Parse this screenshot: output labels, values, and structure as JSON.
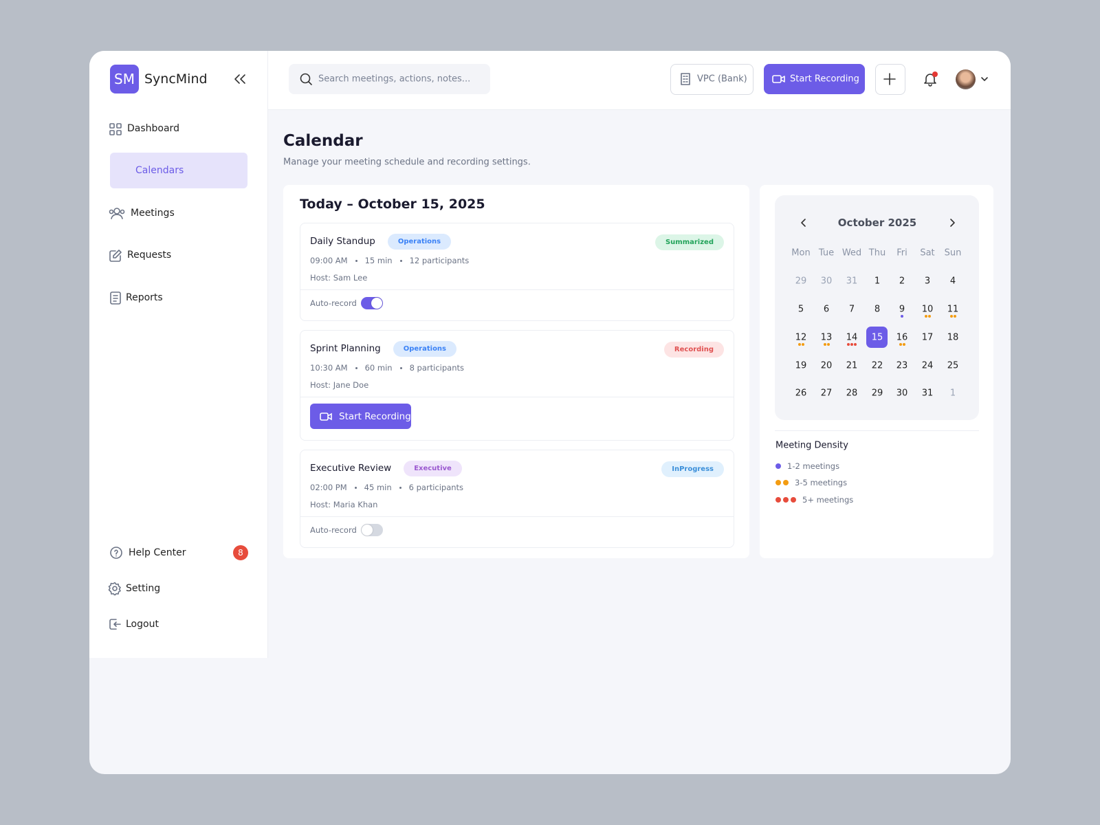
{
  "sidebar": {
    "logo": "SM",
    "brand": "SyncMind",
    "nav": [
      "Dashboard",
      "Calendars",
      "Meetings",
      "Requests",
      "Reports"
    ],
    "active": 1,
    "bottom": [
      {
        "label": "Help Center",
        "badge": 8
      },
      {
        "label": "Setting"
      },
      {
        "label": "Logout"
      }
    ]
  },
  "topbar": {
    "search": "Search meetings, actions, notes...",
    "workspace": "VPC (Bank)",
    "record": "Start Recording"
  },
  "page": {
    "title": "Calendar",
    "subtitle": "Manage your meeting schedule and recording settings."
  },
  "today": {
    "heading": "Today – October 15, 2025",
    "meetings": [
      {
        "title": "Daily Standup",
        "tag": "Operations",
        "tag_color": "#3b82f6",
        "tag_bg": "#dbeafe",
        "status": "Summarized",
        "status_color": "#22a35a",
        "status_bg": "#dcf5e7",
        "time": "09:00 AM",
        "duration": "15 min",
        "participants": "12 participants",
        "host": "Host: Sam Lee",
        "toggle_label": "Auto-record",
        "auto_record": true
      },
      {
        "title": "Sprint Planning",
        "tag": "Operations",
        "tag_color": "#3b82f6",
        "tag_bg": "#dbeafe",
        "status": "Recording",
        "status_color": "#e05252",
        "status_bg": "#fde4e4",
        "time": "10:30 AM",
        "duration": "60 min",
        "participants": "8 participants",
        "host": "Host: Jane Doe",
        "button": "Start Recording"
      },
      {
        "title": "Executive Review",
        "tag": "Executive",
        "tag_color": "#9b59d0",
        "tag_bg": "#efe4fb",
        "status": "InProgress",
        "status_color": "#3b8fd9",
        "status_bg": "#e0f0fd",
        "time": "02:00 PM",
        "duration": "45 min",
        "participants": "6 participants",
        "host": "Host: Maria Khan",
        "toggle_label": "Auto-record",
        "auto_record": false
      }
    ]
  },
  "calendar": {
    "month": "October 2025",
    "weekdays": [
      "Mon",
      "Tue",
      "Wed",
      "Thu",
      "Fri",
      "Sat",
      "Sun"
    ],
    "selected": 15,
    "weeks": [
      [
        {
          "day": 29,
          "muted": true
        },
        {
          "day": 30,
          "muted": true
        },
        {
          "day": 31,
          "muted": true
        },
        {
          "day": 1
        },
        {
          "day": 2
        },
        {
          "day": 3
        },
        {
          "day": 4
        }
      ],
      [
        {
          "day": 5
        },
        {
          "day": 6
        },
        {
          "day": 7
        },
        {
          "day": 8
        },
        {
          "day": 9,
          "density": 0
        },
        {
          "day": 10,
          "density": 1
        },
        {
          "day": 11,
          "density": 1
        }
      ],
      [
        {
          "day": 12,
          "density": 1
        },
        {
          "day": 13,
          "density": 1
        },
        {
          "day": 14,
          "density": 2
        },
        {
          "day": 15
        },
        {
          "day": 16,
          "density": 1
        },
        {
          "day": 17
        },
        {
          "day": 18
        }
      ],
      [
        {
          "day": 19
        },
        {
          "day": 20
        },
        {
          "day": 21
        },
        {
          "day": 22
        },
        {
          "day": 23
        },
        {
          "day": 24
        },
        {
          "day": 25
        }
      ],
      [
        {
          "day": 26
        },
        {
          "day": 27
        },
        {
          "day": 28
        },
        {
          "day": 29
        },
        {
          "day": 30
        },
        {
          "day": 31
        },
        {
          "day": 1,
          "muted": true
        }
      ]
    ],
    "legend_title": "Meeting Density",
    "legend": [
      {
        "label": "1-2 meetings",
        "dots": 1,
        "color": "#6c5ce7"
      },
      {
        "label": "3-5 meetings",
        "dots": 2,
        "color": "#f39c12"
      },
      {
        "label": "5+ meetings",
        "dots": 3,
        "color": "#e74c3c"
      }
    ]
  }
}
